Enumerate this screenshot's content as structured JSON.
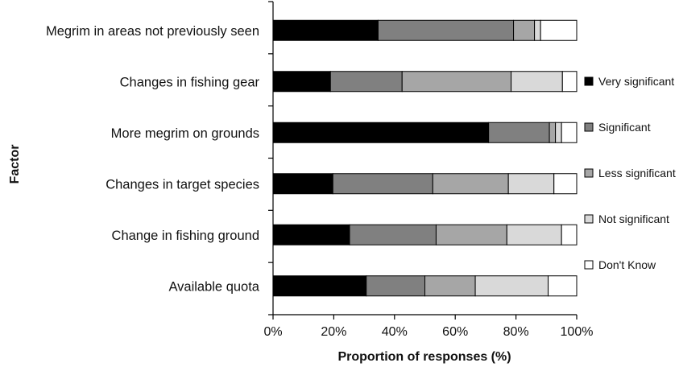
{
  "chart_data": {
    "type": "bar",
    "orientation": "horizontal",
    "stacked": true,
    "percent": true,
    "xlabel": "Proportion of responses (%)",
    "ylabel": "Factor",
    "xlim": [
      0,
      100
    ],
    "x_ticks": [
      "0%",
      "20%",
      "40%",
      "60%",
      "80%",
      "100%"
    ],
    "grid": false,
    "legend_position": "right",
    "categories": [
      "Megrim in areas not previously seen",
      "Changes in fishing gear",
      "More megrim on grounds",
      "Changes in target species",
      "Change in fishing ground",
      "Available quota"
    ],
    "series": [
      {
        "name": "Very significant",
        "color": "#000000",
        "values": [
          34.6,
          18.9,
          71.0,
          19.7,
          25.2,
          30.7
        ]
      },
      {
        "name": "Significant",
        "color": "#808080",
        "values": [
          44.6,
          23.6,
          20.0,
          32.9,
          28.5,
          19.3
        ]
      },
      {
        "name": "Less significant",
        "color": "#a6a6a6",
        "values": [
          6.9,
          35.9,
          2.0,
          24.9,
          23.3,
          16.6
        ]
      },
      {
        "name": "Not significant",
        "color": "#d9d9d9",
        "values": [
          2.0,
          16.9,
          2.0,
          15.0,
          18.0,
          24.0
        ]
      },
      {
        "name": "Don't Know",
        "color": "#ffffff",
        "values": [
          11.9,
          4.7,
          5.0,
          7.5,
          5.0,
          9.4
        ]
      }
    ]
  }
}
